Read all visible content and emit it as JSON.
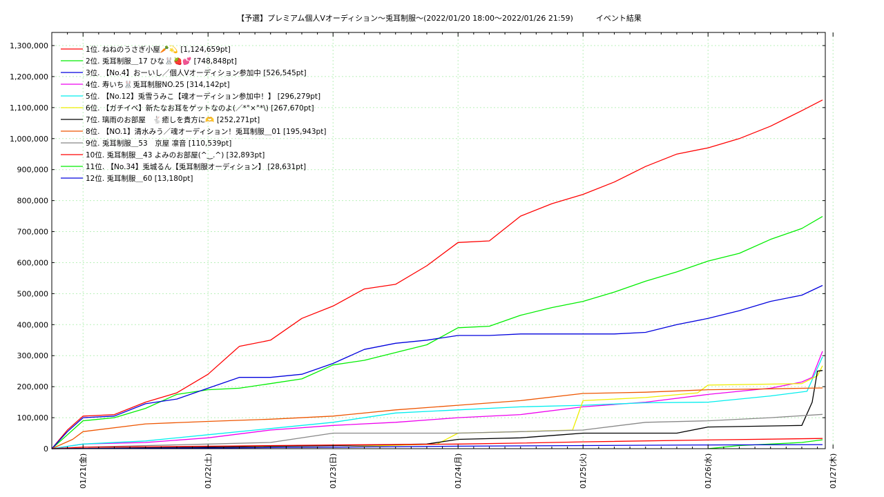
{
  "chart_data": {
    "type": "line",
    "title": "【予選】プレミアム個人Vオーディション〜兎耳制服～(2022/01/20 18:00～2022/01/26 21:59)　　　イベント結果",
    "xlabel": "",
    "ylabel": "",
    "x_range": [
      "2022-01-20 18:00",
      "2022-01-26 21:59"
    ],
    "ylim": [
      0,
      1300000
    ],
    "y_ticks": [
      0,
      100000,
      200000,
      300000,
      400000,
      500000,
      600000,
      700000,
      800000,
      900000,
      1000000,
      1100000,
      1200000,
      1300000
    ],
    "y_tick_labels": [
      "0",
      "100,000",
      "200,000",
      "300,000",
      "400,000",
      "500,000",
      "600,000",
      "700,000",
      "800,000",
      "900,000",
      "1,000,000",
      "1,100,000",
      "1,200,000",
      "1,300,000"
    ],
    "x_ticks": [
      "2022-01-21 00:00",
      "2022-01-22 00:00",
      "2022-01-23 00:00",
      "2022-01-24 00:00",
      "2022-01-25 00:00",
      "2022-01-26 00:00",
      "2022-01-27 00:00"
    ],
    "x_tick_labels": [
      "01/21(金)",
      "01/22(土)",
      "01/23(日)",
      "01/24(月)",
      "01/25(火)",
      "01/26(水)",
      "01/27(木)"
    ],
    "grid": true,
    "legend_position": "top-left",
    "series": [
      {
        "name": "1位. ねねのうさぎ小屋🥕💫 [1,124,659pt]",
        "color": "#ff0000",
        "points": [
          [
            "2022-01-20 18:00",
            0
          ],
          [
            "2022-01-20 21:00",
            60000
          ],
          [
            "2022-01-21 00:00",
            105000
          ],
          [
            "2022-01-21 06:00",
            110000
          ],
          [
            "2022-01-21 12:00",
            150000
          ],
          [
            "2022-01-21 18:00",
            180000
          ],
          [
            "2022-01-22 00:00",
            240000
          ],
          [
            "2022-01-22 06:00",
            330000
          ],
          [
            "2022-01-22 12:00",
            350000
          ],
          [
            "2022-01-22 18:00",
            420000
          ],
          [
            "2022-01-23 00:00",
            460000
          ],
          [
            "2022-01-23 06:00",
            515000
          ],
          [
            "2022-01-23 12:00",
            530000
          ],
          [
            "2022-01-23 18:00",
            590000
          ],
          [
            "2022-01-24 00:00",
            665000
          ],
          [
            "2022-01-24 06:00",
            670000
          ],
          [
            "2022-01-24 12:00",
            750000
          ],
          [
            "2022-01-24 18:00",
            790000
          ],
          [
            "2022-01-25 00:00",
            820000
          ],
          [
            "2022-01-25 06:00",
            860000
          ],
          [
            "2022-01-25 12:00",
            910000
          ],
          [
            "2022-01-25 18:00",
            950000
          ],
          [
            "2022-01-26 00:00",
            970000
          ],
          [
            "2022-01-26 06:00",
            1000000
          ],
          [
            "2022-01-26 12:00",
            1040000
          ],
          [
            "2022-01-26 18:00",
            1090000
          ],
          [
            "2022-01-26 21:59",
            1124659
          ]
        ]
      },
      {
        "name": "2位. 兎耳制服＿17 ひな🐰🍓💕 [748,848pt]",
        "color": "#00ee00",
        "points": [
          [
            "2022-01-20 18:00",
            0
          ],
          [
            "2022-01-20 21:00",
            45000
          ],
          [
            "2022-01-21 00:00",
            90000
          ],
          [
            "2022-01-21 06:00",
            100000
          ],
          [
            "2022-01-21 12:00",
            130000
          ],
          [
            "2022-01-21 18:00",
            175000
          ],
          [
            "2022-01-22 00:00",
            190000
          ],
          [
            "2022-01-22 06:00",
            195000
          ],
          [
            "2022-01-22 12:00",
            210000
          ],
          [
            "2022-01-22 18:00",
            225000
          ],
          [
            "2022-01-23 00:00",
            270000
          ],
          [
            "2022-01-23 06:00",
            285000
          ],
          [
            "2022-01-23 12:00",
            310000
          ],
          [
            "2022-01-23 18:00",
            335000
          ],
          [
            "2022-01-24 00:00",
            390000
          ],
          [
            "2022-01-24 06:00",
            395000
          ],
          [
            "2022-01-24 12:00",
            430000
          ],
          [
            "2022-01-24 18:00",
            455000
          ],
          [
            "2022-01-25 00:00",
            475000
          ],
          [
            "2022-01-25 06:00",
            505000
          ],
          [
            "2022-01-25 12:00",
            540000
          ],
          [
            "2022-01-25 18:00",
            570000
          ],
          [
            "2022-01-26 00:00",
            605000
          ],
          [
            "2022-01-26 06:00",
            630000
          ],
          [
            "2022-01-26 12:00",
            675000
          ],
          [
            "2022-01-26 18:00",
            710000
          ],
          [
            "2022-01-26 21:59",
            748848
          ]
        ]
      },
      {
        "name": "3位. 【No.4】おーいし／個人Vオーディション参加中 [526,545pt]",
        "color": "#0000dd",
        "points": [
          [
            "2022-01-20 18:00",
            0
          ],
          [
            "2022-01-20 21:00",
            55000
          ],
          [
            "2022-01-21 00:00",
            100000
          ],
          [
            "2022-01-21 06:00",
            105000
          ],
          [
            "2022-01-21 12:00",
            145000
          ],
          [
            "2022-01-21 18:00",
            160000
          ],
          [
            "2022-01-22 00:00",
            195000
          ],
          [
            "2022-01-22 06:00",
            230000
          ],
          [
            "2022-01-22 12:00",
            230000
          ],
          [
            "2022-01-22 18:00",
            240000
          ],
          [
            "2022-01-23 00:00",
            275000
          ],
          [
            "2022-01-23 06:00",
            320000
          ],
          [
            "2022-01-23 12:00",
            340000
          ],
          [
            "2022-01-23 18:00",
            350000
          ],
          [
            "2022-01-24 00:00",
            365000
          ],
          [
            "2022-01-24 06:00",
            365000
          ],
          [
            "2022-01-24 12:00",
            370000
          ],
          [
            "2022-01-24 18:00",
            370000
          ],
          [
            "2022-01-25 00:00",
            370000
          ],
          [
            "2022-01-25 06:00",
            370000
          ],
          [
            "2022-01-25 12:00",
            375000
          ],
          [
            "2022-01-25 18:00",
            400000
          ],
          [
            "2022-01-26 00:00",
            420000
          ],
          [
            "2022-01-26 06:00",
            445000
          ],
          [
            "2022-01-26 12:00",
            475000
          ],
          [
            "2022-01-26 18:00",
            495000
          ],
          [
            "2022-01-26 21:59",
            526545
          ]
        ]
      },
      {
        "name": "4位. 寿いち🐰兎耳制服NO.25 [314,142pt]",
        "color": "#ee00ee",
        "points": [
          [
            "2022-01-20 18:00",
            0
          ],
          [
            "2022-01-21 00:00",
            15000
          ],
          [
            "2022-01-21 12:00",
            20000
          ],
          [
            "2022-01-22 00:00",
            35000
          ],
          [
            "2022-01-22 12:00",
            60000
          ],
          [
            "2022-01-23 00:00",
            75000
          ],
          [
            "2022-01-23 12:00",
            85000
          ],
          [
            "2022-01-24 00:00",
            100000
          ],
          [
            "2022-01-24 12:00",
            110000
          ],
          [
            "2022-01-25 00:00",
            135000
          ],
          [
            "2022-01-25 12:00",
            150000
          ],
          [
            "2022-01-26 00:00",
            175000
          ],
          [
            "2022-01-26 12:00",
            195000
          ],
          [
            "2022-01-26 18:00",
            215000
          ],
          [
            "2022-01-26 20:00",
            230000
          ],
          [
            "2022-01-26 21:59",
            314142
          ]
        ]
      },
      {
        "name": "5位. 【No.12】兎雪うみこ【魂オーディション参加中！】 [296,279pt]",
        "color": "#00eeee",
        "points": [
          [
            "2022-01-20 18:00",
            0
          ],
          [
            "2022-01-21 00:00",
            15000
          ],
          [
            "2022-01-21 12:00",
            25000
          ],
          [
            "2022-01-22 00:00",
            45000
          ],
          [
            "2022-01-22 12:00",
            65000
          ],
          [
            "2022-01-23 00:00",
            85000
          ],
          [
            "2022-01-23 12:00",
            115000
          ],
          [
            "2022-01-24 00:00",
            125000
          ],
          [
            "2022-01-24 12:00",
            135000
          ],
          [
            "2022-01-25 00:00",
            140000
          ],
          [
            "2022-01-25 12:00",
            148000
          ],
          [
            "2022-01-26 00:00",
            150000
          ],
          [
            "2022-01-26 12:00",
            170000
          ],
          [
            "2022-01-26 19:00",
            185000
          ],
          [
            "2022-01-26 21:59",
            296279
          ]
        ]
      },
      {
        "name": "6位. 【ガチイベ】新たなお耳をゲットなのよ(／*°×°*\\) [267,670pt]",
        "color": "#eeee00",
        "points": [
          [
            "2022-01-20 18:00",
            0
          ],
          [
            "2022-01-23 00:00",
            5000
          ],
          [
            "2022-01-23 20:00",
            15000
          ],
          [
            "2022-01-24 00:00",
            50000
          ],
          [
            "2022-01-24 12:00",
            55000
          ],
          [
            "2022-01-24 22:00",
            60000
          ],
          [
            "2022-01-25 00:00",
            155000
          ],
          [
            "2022-01-25 12:00",
            165000
          ],
          [
            "2022-01-25 22:00",
            180000
          ],
          [
            "2022-01-26 00:00",
            205000
          ],
          [
            "2022-01-26 18:00",
            210000
          ],
          [
            "2022-01-26 21:00",
            235000
          ],
          [
            "2022-01-26 21:59",
            267670
          ]
        ]
      },
      {
        "name": "7位. 璃雨のお部屋　🐇癒しを貴方に🫶 [252,271pt]",
        "color": "#000000",
        "points": [
          [
            "2022-01-20 18:00",
            0
          ],
          [
            "2022-01-22 00:00",
            5000
          ],
          [
            "2022-01-23 00:00",
            10000
          ],
          [
            "2022-01-23 18:00",
            15000
          ],
          [
            "2022-01-24 00:00",
            30000
          ],
          [
            "2022-01-24 12:00",
            35000
          ],
          [
            "2022-01-24 20:00",
            45000
          ],
          [
            "2022-01-25 00:00",
            50000
          ],
          [
            "2022-01-25 18:00",
            50000
          ],
          [
            "2022-01-26 00:00",
            70000
          ],
          [
            "2022-01-26 18:00",
            75000
          ],
          [
            "2022-01-26 20:00",
            150000
          ],
          [
            "2022-01-26 21:00",
            250000
          ],
          [
            "2022-01-26 21:59",
            252271
          ]
        ]
      },
      {
        "name": "8位. 【NO.1】清水みう／魂オーディション！兎耳制服＿01 [195,943pt]",
        "color": "#ee5500",
        "points": [
          [
            "2022-01-20 18:00",
            0
          ],
          [
            "2022-01-20 22:00",
            30000
          ],
          [
            "2022-01-21 00:00",
            55000
          ],
          [
            "2022-01-21 12:00",
            80000
          ],
          [
            "2022-01-22 00:00",
            88000
          ],
          [
            "2022-01-22 12:00",
            95000
          ],
          [
            "2022-01-23 00:00",
            105000
          ],
          [
            "2022-01-23 12:00",
            125000
          ],
          [
            "2022-01-24 00:00",
            140000
          ],
          [
            "2022-01-24 12:00",
            155000
          ],
          [
            "2022-01-25 00:00",
            178000
          ],
          [
            "2022-01-25 12:00",
            182000
          ],
          [
            "2022-01-26 00:00",
            190000
          ],
          [
            "2022-01-26 12:00",
            193000
          ],
          [
            "2022-01-26 21:59",
            195943
          ]
        ]
      },
      {
        "name": "9位. 兎耳制服＿53　京屋 凛音 [110,539pt]",
        "color": "#888888",
        "points": [
          [
            "2022-01-20 18:00",
            0
          ],
          [
            "2022-01-21 00:00",
            5000
          ],
          [
            "2022-01-22 00:00",
            15000
          ],
          [
            "2022-01-22 12:00",
            20000
          ],
          [
            "2022-01-23 00:00",
            50000
          ],
          [
            "2022-01-24 00:00",
            50000
          ],
          [
            "2022-01-24 12:00",
            55000
          ],
          [
            "2022-01-25 00:00",
            60000
          ],
          [
            "2022-01-25 12:00",
            85000
          ],
          [
            "2022-01-26 00:00",
            90000
          ],
          [
            "2022-01-26 12:00",
            100000
          ],
          [
            "2022-01-26 21:59",
            110539
          ]
        ]
      },
      {
        "name": "10位. 兎耳制服＿43 よみのお部屋(^‿.^) [32,893pt]",
        "color": "#ff0000",
        "points": [
          [
            "2022-01-20 18:00",
            0
          ],
          [
            "2022-01-21 00:00",
            5000
          ],
          [
            "2022-01-22 00:00",
            8000
          ],
          [
            "2022-01-23 00:00",
            12000
          ],
          [
            "2022-01-24 00:00",
            15000
          ],
          [
            "2022-01-24 12:00",
            18000
          ],
          [
            "2022-01-25 00:00",
            22000
          ],
          [
            "2022-01-26 00:00",
            28000
          ],
          [
            "2022-01-26 21:59",
            32893
          ]
        ]
      },
      {
        "name": "11位. 【No.34】兎城るん【兎耳制服オーディション】 [28,631pt]",
        "color": "#00ee00",
        "points": [
          [
            "2022-01-26 00:00",
            0
          ],
          [
            "2022-01-26 06:00",
            10000
          ],
          [
            "2022-01-26 12:00",
            15000
          ],
          [
            "2022-01-26 18:00",
            20000
          ],
          [
            "2022-01-26 21:59",
            28631
          ]
        ]
      },
      {
        "name": "12位. 兎耳制服＿60 [13,180pt]",
        "color": "#0000dd",
        "points": [
          [
            "2022-01-20 18:00",
            0
          ],
          [
            "2022-01-22 00:00",
            2000
          ],
          [
            "2022-01-24 00:00",
            8000
          ],
          [
            "2022-01-25 00:00",
            10000
          ],
          [
            "2022-01-26 00:00",
            12000
          ],
          [
            "2022-01-26 21:59",
            13180
          ]
        ]
      }
    ]
  }
}
